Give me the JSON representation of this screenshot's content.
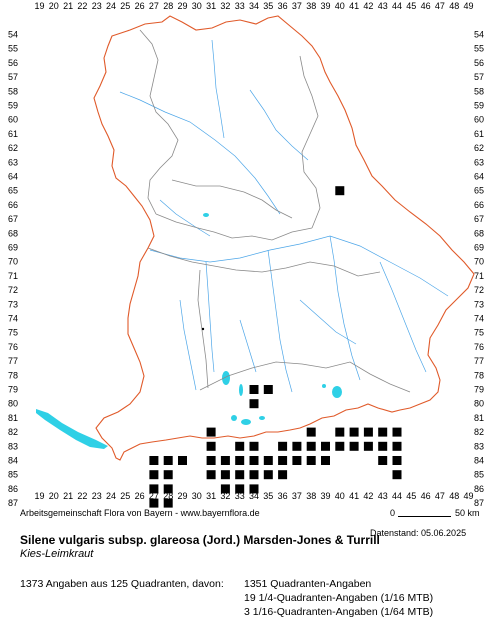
{
  "map": {
    "x_labels": [
      "19",
      "20",
      "21",
      "22",
      "23",
      "24",
      "25",
      "26",
      "27",
      "28",
      "29",
      "30",
      "31",
      "32",
      "33",
      "34",
      "35",
      "36",
      "37",
      "38",
      "39",
      "40",
      "41",
      "42",
      "43",
      "44",
      "45",
      "46",
      "47",
      "48",
      "49"
    ],
    "y_labels": [
      "54",
      "55",
      "56",
      "57",
      "58",
      "59",
      "60",
      "61",
      "62",
      "63",
      "64",
      "65",
      "66",
      "67",
      "68",
      "69",
      "70",
      "71",
      "72",
      "73",
      "74",
      "75",
      "76",
      "77",
      "78",
      "79",
      "80",
      "81",
      "82",
      "83",
      "84",
      "85",
      "86",
      "87"
    ],
    "colors": {
      "border": "#e05a2a",
      "district": "#8a8a8a",
      "water": "#4da6e8",
      "lake": "#2fd0e6",
      "occurrence": "#000000"
    },
    "occurrence_cells": [
      [
        40,
        65
      ],
      [
        34,
        79
      ],
      [
        35,
        79
      ],
      [
        34,
        80
      ],
      [
        31,
        82
      ],
      [
        38,
        82
      ],
      [
        40,
        82
      ],
      [
        41,
        82
      ],
      [
        42,
        82
      ],
      [
        43,
        82
      ],
      [
        44,
        82
      ],
      [
        31,
        83
      ],
      [
        33,
        83
      ],
      [
        34,
        83
      ],
      [
        36,
        83
      ],
      [
        37,
        83
      ],
      [
        38,
        83
      ],
      [
        39,
        83
      ],
      [
        40,
        83
      ],
      [
        41,
        83
      ],
      [
        42,
        83
      ],
      [
        43,
        83
      ],
      [
        44,
        83
      ],
      [
        27,
        84
      ],
      [
        28,
        84
      ],
      [
        29,
        84
      ],
      [
        31,
        84
      ],
      [
        32,
        84
      ],
      [
        33,
        84
      ],
      [
        34,
        84
      ],
      [
        35,
        84
      ],
      [
        36,
        84
      ],
      [
        37,
        84
      ],
      [
        38,
        84
      ],
      [
        39,
        84
      ],
      [
        43,
        84
      ],
      [
        44,
        84
      ],
      [
        27,
        85
      ],
      [
        28,
        85
      ],
      [
        31,
        85
      ],
      [
        32,
        85
      ],
      [
        33,
        85
      ],
      [
        34,
        85
      ],
      [
        35,
        85
      ],
      [
        36,
        85
      ],
      [
        44,
        85
      ],
      [
        27,
        86
      ],
      [
        28,
        86
      ],
      [
        32,
        86
      ],
      [
        33,
        86
      ],
      [
        34,
        86
      ],
      [
        27,
        87
      ],
      [
        28,
        87
      ]
    ]
  },
  "credit": "Arbeitsgemeinschaft Flora von Bayern - www.bayernflora.de",
  "scale": {
    "zero": "0",
    "km": "50 km"
  },
  "date": "Datenstand: 05.06.2025",
  "title": "Silene vulgaris subsp. glareosa (Jord.) Marsden-Jones & Turrill",
  "subtitle": "Kies-Leimkraut",
  "summary": "1373 Angaben aus 125 Quadranten, davon:",
  "stats": [
    "1351 Quadranten-Angaben",
    "19 1/4-Quadranten-Angaben (1/16 MTB)",
    "3 1/16-Quadranten-Angaben (1/64 MTB)"
  ]
}
